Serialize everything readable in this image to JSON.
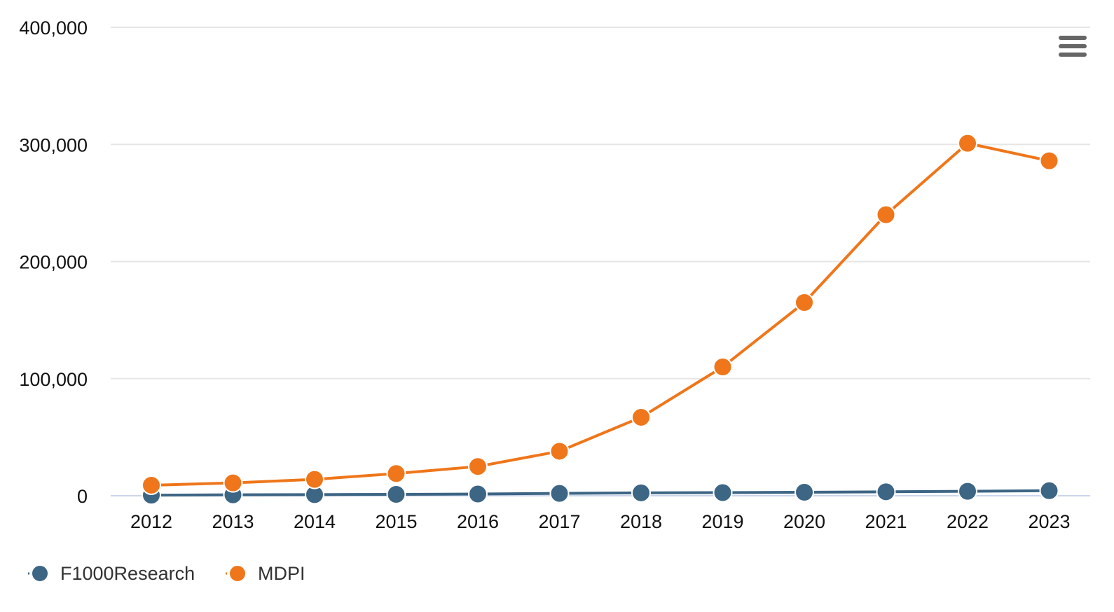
{
  "chart_data": {
    "type": "line",
    "title": "",
    "xlabel": "",
    "ylabel": "",
    "x": [
      "2012",
      "2013",
      "2014",
      "2015",
      "2016",
      "2017",
      "2018",
      "2019",
      "2020",
      "2021",
      "2022",
      "2023"
    ],
    "ylim": [
      0,
      400000
    ],
    "yticks": [
      0,
      100000,
      200000,
      300000,
      400000
    ],
    "ytick_labels": [
      "0",
      "100,000",
      "200,000",
      "300,000",
      "400,000"
    ],
    "grid": true,
    "legend_position": "bottom-left",
    "series": [
      {
        "name": "F1000Research",
        "color": "#3d6584",
        "values": [
          500,
          800,
          1000,
          1200,
          1500,
          2000,
          2500,
          2700,
          3000,
          3400,
          3800,
          4300
        ]
      },
      {
        "name": "MDPI",
        "color": "#ef761a",
        "values": [
          9000,
          11000,
          14000,
          19000,
          25000,
          38000,
          67000,
          110000,
          165000,
          240000,
          301000,
          286000
        ]
      }
    ]
  },
  "menu": {
    "icon": "hamburger-menu-icon"
  }
}
